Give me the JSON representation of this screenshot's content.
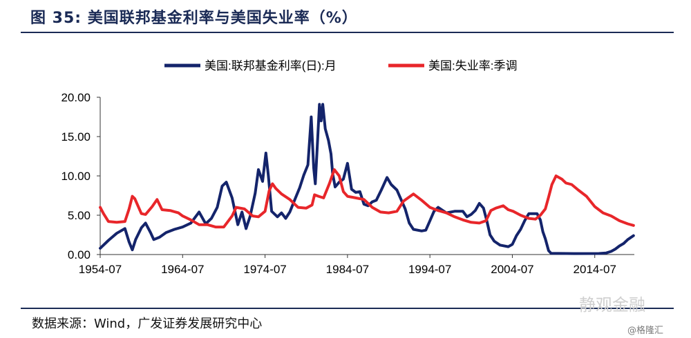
{
  "header": {
    "title": "图 35: 美国联邦基金利率与美国失业率（%）"
  },
  "footer": {
    "source": "数据来源：Wind，广发证券发展研究中心",
    "watermark": "静观金融",
    "watermark_sub": "@格隆汇"
  },
  "chart_data": {
    "type": "line",
    "title": "",
    "xlabel": "",
    "ylabel": "",
    "ylim": [
      0,
      20
    ],
    "yticks": [
      "0.00",
      "5.00",
      "10.00",
      "15.00",
      "20.00"
    ],
    "xticks": [
      "1954-07",
      "1964-07",
      "1974-07",
      "1984-07",
      "1994-07",
      "2004-07",
      "2014-07"
    ],
    "xlim": [
      1954.5,
      2019.3
    ],
    "grid": false,
    "legend": "top-center",
    "series": [
      {
        "name": "美国:联邦基金利率(日):月",
        "color": "#14246b",
        "points": [
          [
            1954.5,
            0.8
          ],
          [
            1955.5,
            1.8
          ],
          [
            1956.5,
            2.7
          ],
          [
            1957.5,
            3.3
          ],
          [
            1958.0,
            1.6
          ],
          [
            1958.4,
            0.6
          ],
          [
            1958.8,
            1.9
          ],
          [
            1959.5,
            3.4
          ],
          [
            1960.0,
            4.0
          ],
          [
            1960.6,
            2.8
          ],
          [
            1961.0,
            1.9
          ],
          [
            1961.7,
            2.2
          ],
          [
            1962.5,
            2.8
          ],
          [
            1963.5,
            3.2
          ],
          [
            1964.5,
            3.5
          ],
          [
            1965.5,
            4.0
          ],
          [
            1966.5,
            5.4
          ],
          [
            1967.3,
            3.9
          ],
          [
            1968.0,
            4.6
          ],
          [
            1968.7,
            6.0
          ],
          [
            1969.3,
            8.7
          ],
          [
            1969.8,
            9.2
          ],
          [
            1970.5,
            7.2
          ],
          [
            1971.2,
            3.8
          ],
          [
            1971.7,
            5.4
          ],
          [
            1972.2,
            3.3
          ],
          [
            1972.7,
            4.9
          ],
          [
            1973.3,
            7.8
          ],
          [
            1973.7,
            10.8
          ],
          [
            1974.2,
            9.3
          ],
          [
            1974.6,
            12.9
          ],
          [
            1974.9,
            10.0
          ],
          [
            1975.3,
            5.5
          ],
          [
            1976.0,
            4.8
          ],
          [
            1976.5,
            5.3
          ],
          [
            1977.0,
            4.6
          ],
          [
            1977.5,
            5.4
          ],
          [
            1978.0,
            6.7
          ],
          [
            1978.7,
            8.5
          ],
          [
            1979.2,
            10.1
          ],
          [
            1979.7,
            11.4
          ],
          [
            1980.1,
            17.5
          ],
          [
            1980.4,
            11.0
          ],
          [
            1980.6,
            9.0
          ],
          [
            1980.9,
            15.0
          ],
          [
            1981.1,
            19.1
          ],
          [
            1981.3,
            17.0
          ],
          [
            1981.5,
            19.1
          ],
          [
            1981.8,
            16.0
          ],
          [
            1982.2,
            14.5
          ],
          [
            1982.5,
            12.8
          ],
          [
            1982.7,
            10.3
          ],
          [
            1983.0,
            8.6
          ],
          [
            1983.5,
            9.2
          ],
          [
            1984.0,
            9.6
          ],
          [
            1984.5,
            11.6
          ],
          [
            1985.0,
            8.3
          ],
          [
            1985.5,
            7.9
          ],
          [
            1986.0,
            8.0
          ],
          [
            1986.5,
            6.4
          ],
          [
            1987.0,
            6.2
          ],
          [
            1987.5,
            6.7
          ],
          [
            1988.0,
            6.9
          ],
          [
            1988.6,
            8.2
          ],
          [
            1989.3,
            9.8
          ],
          [
            1989.8,
            8.9
          ],
          [
            1990.5,
            8.2
          ],
          [
            1991.0,
            7.0
          ],
          [
            1991.5,
            5.8
          ],
          [
            1992.0,
            4.0
          ],
          [
            1992.5,
            3.2
          ],
          [
            1993.5,
            3.0
          ],
          [
            1994.0,
            3.1
          ],
          [
            1994.5,
            4.3
          ],
          [
            1995.0,
            5.5
          ],
          [
            1995.5,
            6.0
          ],
          [
            1996.5,
            5.3
          ],
          [
            1997.5,
            5.5
          ],
          [
            1998.5,
            5.5
          ],
          [
            1999.0,
            4.8
          ],
          [
            1999.5,
            5.1
          ],
          [
            2000.0,
            5.6
          ],
          [
            2000.5,
            6.5
          ],
          [
            2001.0,
            5.9
          ],
          [
            2001.4,
            4.3
          ],
          [
            2001.8,
            2.5
          ],
          [
            2002.3,
            1.7
          ],
          [
            2003.0,
            1.2
          ],
          [
            2004.0,
            1.0
          ],
          [
            2004.5,
            1.3
          ],
          [
            2005.0,
            2.4
          ],
          [
            2005.5,
            3.2
          ],
          [
            2006.0,
            4.3
          ],
          [
            2006.5,
            5.2
          ],
          [
            2007.5,
            5.2
          ],
          [
            2007.9,
            4.4
          ],
          [
            2008.2,
            2.9
          ],
          [
            2008.5,
            2.0
          ],
          [
            2008.9,
            0.5
          ],
          [
            2009.2,
            0.16
          ],
          [
            2012.0,
            0.12
          ],
          [
            2015.0,
            0.13
          ],
          [
            2015.9,
            0.2
          ],
          [
            2016.5,
            0.4
          ],
          [
            2017.0,
            0.7
          ],
          [
            2017.5,
            1.1
          ],
          [
            2018.0,
            1.4
          ],
          [
            2018.5,
            1.9
          ],
          [
            2019.2,
            2.4
          ]
        ]
      },
      {
        "name": "美国:失业率:季调",
        "color": "#e8262a",
        "points": [
          [
            1954.5,
            6.0
          ],
          [
            1954.9,
            5.2
          ],
          [
            1955.5,
            4.2
          ],
          [
            1956.5,
            4.1
          ],
          [
            1957.5,
            4.2
          ],
          [
            1958.0,
            5.8
          ],
          [
            1958.4,
            7.4
          ],
          [
            1958.7,
            7.1
          ],
          [
            1959.5,
            5.2
          ],
          [
            1960.0,
            5.1
          ],
          [
            1960.8,
            6.1
          ],
          [
            1961.4,
            7.0
          ],
          [
            1962.0,
            5.7
          ],
          [
            1963.0,
            5.6
          ],
          [
            1964.0,
            5.3
          ],
          [
            1964.5,
            4.9
          ],
          [
            1965.5,
            4.4
          ],
          [
            1966.5,
            3.8
          ],
          [
            1967.5,
            3.8
          ],
          [
            1968.5,
            3.5
          ],
          [
            1969.5,
            3.5
          ],
          [
            1970.5,
            4.9
          ],
          [
            1971.0,
            6.0
          ],
          [
            1972.0,
            5.8
          ],
          [
            1973.0,
            4.9
          ],
          [
            1973.7,
            4.8
          ],
          [
            1974.5,
            5.5
          ],
          [
            1975.0,
            8.1
          ],
          [
            1975.4,
            9.0
          ],
          [
            1975.8,
            8.4
          ],
          [
            1976.5,
            7.7
          ],
          [
            1977.5,
            7.0
          ],
          [
            1978.5,
            6.0
          ],
          [
            1979.5,
            5.9
          ],
          [
            1980.2,
            6.3
          ],
          [
            1980.5,
            7.6
          ],
          [
            1981.0,
            7.4
          ],
          [
            1981.6,
            7.2
          ],
          [
            1982.3,
            9.0
          ],
          [
            1982.9,
            10.8
          ],
          [
            1983.5,
            10.0
          ],
          [
            1984.0,
            8.0
          ],
          [
            1984.5,
            7.4
          ],
          [
            1985.5,
            7.2
          ],
          [
            1986.5,
            7.0
          ],
          [
            1987.5,
            6.0
          ],
          [
            1988.5,
            5.4
          ],
          [
            1989.5,
            5.3
          ],
          [
            1990.5,
            5.5
          ],
          [
            1991.3,
            6.8
          ],
          [
            1992.5,
            7.7
          ],
          [
            1993.5,
            6.9
          ],
          [
            1994.5,
            6.0
          ],
          [
            1995.5,
            5.6
          ],
          [
            1996.5,
            5.3
          ],
          [
            1997.5,
            4.8
          ],
          [
            1998.5,
            4.4
          ],
          [
            1999.5,
            4.1
          ],
          [
            2000.5,
            4.0
          ],
          [
            2001.3,
            4.3
          ],
          [
            2001.9,
            5.6
          ],
          [
            2002.5,
            5.9
          ],
          [
            2003.4,
            6.2
          ],
          [
            2004.0,
            5.7
          ],
          [
            2004.6,
            5.5
          ],
          [
            2005.5,
            5.0
          ],
          [
            2006.5,
            4.6
          ],
          [
            2007.3,
            4.5
          ],
          [
            2007.9,
            5.0
          ],
          [
            2008.5,
            5.8
          ],
          [
            2008.9,
            7.3
          ],
          [
            2009.3,
            8.9
          ],
          [
            2009.8,
            10.0
          ],
          [
            2010.5,
            9.6
          ],
          [
            2011.0,
            9.1
          ],
          [
            2011.7,
            8.9
          ],
          [
            2012.5,
            8.2
          ],
          [
            2013.5,
            7.4
          ],
          [
            2014.5,
            6.1
          ],
          [
            2015.5,
            5.3
          ],
          [
            2016.5,
            4.9
          ],
          [
            2017.5,
            4.3
          ],
          [
            2018.5,
            3.9
          ],
          [
            2019.2,
            3.7
          ]
        ]
      }
    ]
  }
}
